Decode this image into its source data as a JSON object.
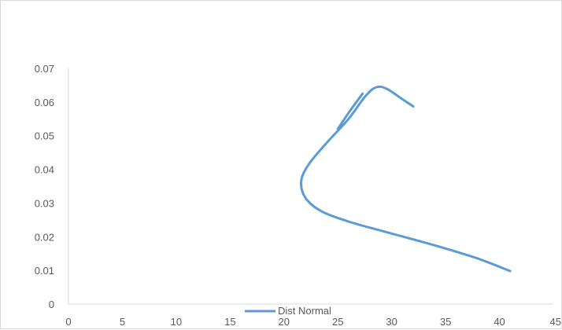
{
  "chart_data": {
    "type": "line",
    "title": "",
    "xlabel": "",
    "ylabel": "",
    "xlim": [
      0,
      45
    ],
    "ylim": [
      0,
      0.07
    ],
    "x_ticks": [
      "0",
      "5",
      "10",
      "15",
      "20",
      "25",
      "30",
      "35",
      "40",
      "45"
    ],
    "y_ticks": [
      "0",
      "0.01",
      "0.02",
      "0.03",
      "0.04",
      "0.05",
      "0.06",
      "0.07"
    ],
    "grid": false,
    "legend": {
      "position": "bottom",
      "entries": [
        "Dist Normal"
      ]
    },
    "series": [
      {
        "name": "Dist Normal",
        "color": "#5b9bd5",
        "points": [
          [
            41,
            0.0098
          ],
          [
            38,
            0.0135
          ],
          [
            35,
            0.0165
          ],
          [
            32,
            0.0192
          ],
          [
            29,
            0.0218
          ],
          [
            26,
            0.0245
          ],
          [
            23.5,
            0.0275
          ],
          [
            22,
            0.0315
          ],
          [
            21.6,
            0.0365
          ],
          [
            22.3,
            0.0415
          ],
          [
            24,
            0.048
          ],
          [
            26,
            0.055
          ],
          [
            27.5,
            0.0615
          ],
          [
            28.5,
            0.0643
          ],
          [
            29.5,
            0.064
          ],
          [
            31,
            0.0608
          ],
          [
            32,
            0.0587
          ]
        ]
      },
      {
        "name": "",
        "color": "#5b9bd5",
        "points": [
          [
            25,
            0.052
          ],
          [
            26,
            0.0568
          ],
          [
            27.3,
            0.0625
          ]
        ]
      }
    ]
  }
}
